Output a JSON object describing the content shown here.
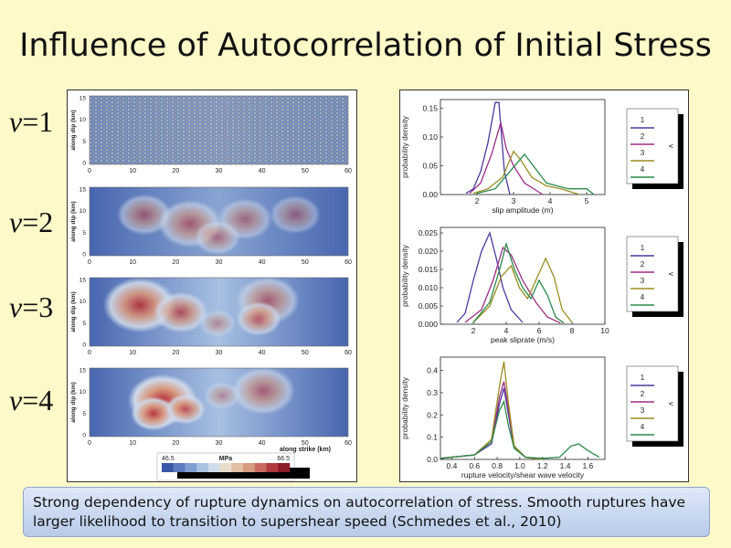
{
  "slide": {
    "title": "Influence of Autocorrelation of Initial Stress",
    "v_labels": [
      {
        "var": "v",
        "value": "=1"
      },
      {
        "var": "v",
        "value": "=2"
      },
      {
        "var": "v",
        "value": "=3"
      },
      {
        "var": "v",
        "value": "=4"
      }
    ],
    "caption": "Strong dependency of rupture dynamics on autocorrelation of stress. Smooth ruptures have larger likelihood to transition to supershear speed (Schmedes et al., 2010)"
  },
  "stress_maps": {
    "ylabel": "along dip (km)",
    "xlabel": "along strike (km)",
    "x_ticks": [
      "0",
      "10",
      "20",
      "30",
      "40",
      "50",
      "60"
    ],
    "y_ticks": [
      "15",
      "10",
      "5",
      "0"
    ],
    "colorbar": {
      "unit": "MPa",
      "min": "46.5",
      "max": "66.5",
      "colors": [
        "#3a57a8",
        "#5b7bc0",
        "#7f9fd3",
        "#a9c2e2",
        "#d0dcea",
        "#e9dccb",
        "#e3bfa3",
        "#d89a80",
        "#c86a5e",
        "#b23a3e",
        "#8e1b2a"
      ]
    },
    "colors": {
      "low": "#3e5ca8",
      "mid": "#cfd9ea",
      "high": "#b52c36"
    }
  },
  "chart_data": [
    {
      "type": "line",
      "xlabel": "slip amplitude (m)",
      "ylabel": "probability density",
      "x_ticks": [
        2,
        3,
        4,
        5
      ],
      "y_ticks": [
        0.0,
        0.05,
        0.1,
        0.15
      ],
      "y_tick_labels": [
        "0.00",
        "0.05",
        "0.10",
        "0.15"
      ],
      "xlim": [
        1.0,
        5.5
      ],
      "ylim": [
        0,
        0.165
      ],
      "legend_title": "v",
      "legend_position": "right",
      "series": [
        {
          "name": "1",
          "color": "#4b3a9e",
          "points": [
            [
              1.7,
              0.002
            ],
            [
              1.9,
              0.01
            ],
            [
              2.1,
              0.04
            ],
            [
              2.3,
              0.09
            ],
            [
              2.5,
              0.16
            ],
            [
              2.6,
              0.16
            ],
            [
              2.75,
              0.04
            ],
            [
              2.9,
              0.0
            ]
          ]
        },
        {
          "name": "2",
          "color": "#9c2d86",
          "points": [
            [
              1.8,
              0.002
            ],
            [
              2.1,
              0.02
            ],
            [
              2.4,
              0.07
            ],
            [
              2.65,
              0.125
            ],
            [
              2.8,
              0.08
            ],
            [
              3.0,
              0.05
            ],
            [
              3.3,
              0.02
            ],
            [
              3.8,
              0.0
            ]
          ]
        },
        {
          "name": "3",
          "color": "#9a8d20",
          "points": [
            [
              1.9,
              0.002
            ],
            [
              2.3,
              0.01
            ],
            [
              2.7,
              0.03
            ],
            [
              3.0,
              0.075
            ],
            [
              3.2,
              0.06
            ],
            [
              3.5,
              0.03
            ],
            [
              3.9,
              0.015
            ],
            [
              4.3,
              0.01
            ],
            [
              4.8,
              0.0
            ]
          ]
        },
        {
          "name": "4",
          "color": "#2a8a4a",
          "points": [
            [
              2.0,
              0.002
            ],
            [
              2.5,
              0.01
            ],
            [
              2.9,
              0.04
            ],
            [
              3.3,
              0.07
            ],
            [
              3.6,
              0.045
            ],
            [
              3.9,
              0.02
            ],
            [
              4.5,
              0.01
            ],
            [
              5.0,
              0.01
            ],
            [
              5.2,
              0.0
            ]
          ]
        }
      ]
    },
    {
      "type": "line",
      "xlabel": "peak sliprate (m/s)",
      "ylabel": "probability density",
      "x_ticks": [
        2,
        4,
        6,
        8,
        10
      ],
      "y_ticks": [
        0.0,
        0.005,
        0.01,
        0.015,
        0.02,
        0.025
      ],
      "y_tick_labels": [
        "0.000",
        "0.005",
        "0.010",
        "0.015",
        "0.020",
        "0.025"
      ],
      "xlim": [
        0,
        10
      ],
      "ylim": [
        0,
        0.0265
      ],
      "legend_title": "v",
      "legend_position": "right",
      "series": [
        {
          "name": "1",
          "color": "#4b3a9e",
          "points": [
            [
              1.0,
              0.0005
            ],
            [
              1.5,
              0.003
            ],
            [
              2.0,
              0.012
            ],
            [
              2.5,
              0.02
            ],
            [
              3.0,
              0.025
            ],
            [
              3.4,
              0.018
            ],
            [
              3.8,
              0.01
            ],
            [
              4.3,
              0.004
            ],
            [
              5.0,
              0.0005
            ]
          ]
        },
        {
          "name": "2",
          "color": "#9c2d86",
          "points": [
            [
              1.5,
              0.0005
            ],
            [
              2.5,
              0.004
            ],
            [
              3.2,
              0.012
            ],
            [
              3.8,
              0.021
            ],
            [
              4.3,
              0.019
            ],
            [
              5.0,
              0.012
            ],
            [
              5.8,
              0.006
            ],
            [
              6.5,
              0.002
            ],
            [
              7.3,
              0.0003
            ]
          ]
        },
        {
          "name": "3",
          "color": "#9a8d20",
          "points": [
            [
              2.0,
              0.0005
            ],
            [
              3.0,
              0.005
            ],
            [
              3.7,
              0.013
            ],
            [
              4.3,
              0.016
            ],
            [
              4.8,
              0.01
            ],
            [
              5.3,
              0.007
            ],
            [
              5.9,
              0.013
            ],
            [
              6.4,
              0.018
            ],
            [
              6.9,
              0.013
            ],
            [
              7.4,
              0.004
            ],
            [
              8.0,
              0.0005
            ]
          ]
        },
        {
          "name": "4",
          "color": "#2a8a4a",
          "points": [
            [
              2.0,
              0.0005
            ],
            [
              3.0,
              0.006
            ],
            [
              3.6,
              0.015
            ],
            [
              4.0,
              0.022
            ],
            [
              4.5,
              0.015
            ],
            [
              5.0,
              0.01
            ],
            [
              5.5,
              0.007
            ],
            [
              6.0,
              0.012
            ],
            [
              6.5,
              0.008
            ],
            [
              7.0,
              0.002
            ],
            [
              7.5,
              0.0003
            ]
          ]
        }
      ]
    },
    {
      "type": "line",
      "xlabel": "rupture velocity/shear wave velocity",
      "ylabel": "probability density",
      "x_ticks": [
        0.4,
        0.6,
        0.8,
        1.0,
        1.2,
        1.4,
        1.6
      ],
      "x_tick_labels": [
        "0.4",
        "0.6",
        "0.8",
        "1.0",
        "1.2",
        "1.4",
        "1.6"
      ],
      "y_ticks": [
        0.0,
        0.1,
        0.2,
        0.3,
        0.4
      ],
      "y_tick_labels": [
        "0.0",
        "0.1",
        "0.2",
        "0.3",
        "0.4"
      ],
      "xlim": [
        0.3,
        1.75
      ],
      "ylim": [
        0,
        0.46
      ],
      "legend_title": "v",
      "legend_position": "right",
      "series": [
        {
          "name": "1",
          "color": "#4b3a9e",
          "points": [
            [
              0.3,
              0.005
            ],
            [
              0.6,
              0.02
            ],
            [
              0.75,
              0.07
            ],
            [
              0.82,
              0.25
            ],
            [
              0.86,
              0.32
            ],
            [
              0.9,
              0.2
            ],
            [
              0.95,
              0.05
            ],
            [
              1.05,
              0.01
            ],
            [
              1.2,
              0.0
            ]
          ]
        },
        {
          "name": "2",
          "color": "#9c2d86",
          "points": [
            [
              0.3,
              0.005
            ],
            [
              0.6,
              0.02
            ],
            [
              0.75,
              0.08
            ],
            [
              0.82,
              0.28
            ],
            [
              0.86,
              0.35
            ],
            [
              0.9,
              0.22
            ],
            [
              0.95,
              0.06
            ],
            [
              1.05,
              0.01
            ],
            [
              1.2,
              0.0
            ]
          ]
        },
        {
          "name": "3",
          "color": "#9a8d20",
          "points": [
            [
              0.3,
              0.005
            ],
            [
              0.6,
              0.02
            ],
            [
              0.75,
              0.09
            ],
            [
              0.82,
              0.33
            ],
            [
              0.86,
              0.44
            ],
            [
              0.9,
              0.25
            ],
            [
              0.95,
              0.06
            ],
            [
              1.05,
              0.01
            ],
            [
              1.2,
              0.0
            ]
          ]
        },
        {
          "name": "4",
          "color": "#2a8a4a",
          "points": [
            [
              0.3,
              0.005
            ],
            [
              0.6,
              0.02
            ],
            [
              0.75,
              0.08
            ],
            [
              0.82,
              0.22
            ],
            [
              0.86,
              0.26
            ],
            [
              0.9,
              0.15
            ],
            [
              0.95,
              0.05
            ],
            [
              1.05,
              0.01
            ],
            [
              1.2,
              0.005
            ],
            [
              1.35,
              0.01
            ],
            [
              1.45,
              0.06
            ],
            [
              1.52,
              0.07
            ],
            [
              1.6,
              0.04
            ],
            [
              1.7,
              0.01
            ]
          ]
        }
      ]
    }
  ]
}
